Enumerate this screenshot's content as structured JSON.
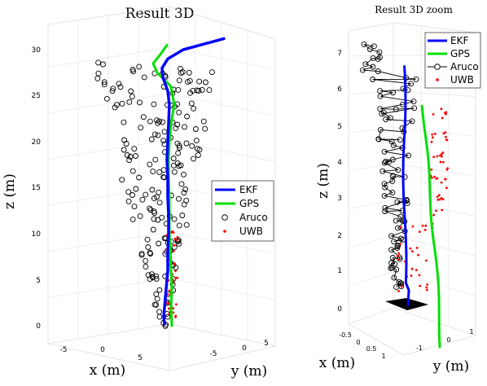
{
  "chart_data": [
    {
      "type": "line",
      "title": "Result 3D",
      "xlabel": "x (m)",
      "ylabel": "y (m)",
      "zlabel": "z (m)",
      "x_ticks": [
        "-5",
        "0",
        "5"
      ],
      "y_ticks": [
        "-5",
        "0",
        "5"
      ],
      "z_ticks": [
        "0",
        "5",
        "10",
        "15",
        "20",
        "25",
        "30"
      ],
      "legend": {
        "placement": "right",
        "entries": [
          {
            "name": "EKF",
            "color": "#0000ff",
            "marker": "line"
          },
          {
            "name": "GPS",
            "color": "#00e000",
            "marker": "line"
          },
          {
            "name": "Aruco",
            "color": "#000000",
            "marker": "circle"
          },
          {
            "name": "UWB",
            "color": "#ff0000",
            "marker": "dot"
          }
        ]
      },
      "zlim": [
        0,
        31
      ],
      "series": [
        {
          "name": "EKF",
          "points_z": [
            0.2,
            1.0,
            2.0,
            3.0,
            4.0,
            5.0,
            6.0,
            8.0,
            10.0,
            12.0,
            14.0,
            16.0,
            18.0,
            20.0,
            22.0,
            24.0,
            25.5,
            27.0,
            28.0,
            29.0,
            30.0,
            30.6,
            31.2
          ]
        },
        {
          "name": "GPS",
          "points_z": [
            0.0,
            2.0,
            4.0,
            6.0,
            8.0,
            10.0,
            12.0,
            14.0,
            16.0,
            18.0,
            20.0,
            22.0,
            24.0,
            26.0,
            27.5,
            28.5,
            29.5,
            30.5
          ]
        }
      ]
    },
    {
      "type": "line",
      "title": "Result 3D zoom",
      "xlabel": "x (m)",
      "ylabel": "y (m)",
      "zlabel": "z (m)",
      "x_ticks": [
        "-0.5",
        "0",
        "0.5",
        "1"
      ],
      "y_ticks": [
        "-1",
        "0",
        "1"
      ],
      "z_ticks": [
        "0",
        "1",
        "2",
        "3",
        "4",
        "5",
        "6",
        "7"
      ],
      "legend": {
        "placement": "top-right",
        "entries": [
          {
            "name": "EKF",
            "color": "#0000ff",
            "marker": "line"
          },
          {
            "name": "GPS",
            "color": "#00e000",
            "marker": "line"
          },
          {
            "name": "Aruco",
            "color": "#000000",
            "marker": "circle-line"
          },
          {
            "name": "UWB",
            "color": "#ff0000",
            "marker": "dot"
          }
        ]
      },
      "zlim": [
        0,
        7.5
      ]
    }
  ]
}
